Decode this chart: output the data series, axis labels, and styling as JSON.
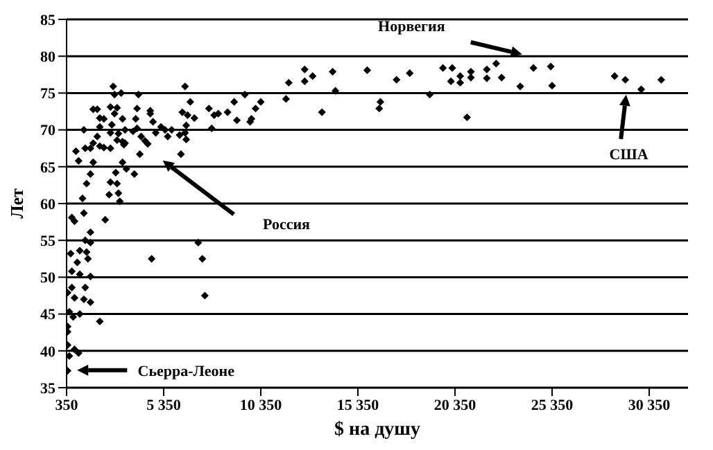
{
  "chart_data": {
    "type": "scatter",
    "xlabel": "$ на душу",
    "ylabel": "Лет",
    "marker": "diamond",
    "grid": "y",
    "legend": false,
    "xlim": [
      350,
      32350
    ],
    "ylim": [
      35,
      85
    ],
    "xticks": [
      350,
      {
        "value": 5350,
        "label": "5 350"
      },
      {
        "value": 10350,
        "label": "10 350"
      },
      {
        "value": 15350,
        "label": "15 350"
      },
      {
        "value": 20350,
        "label": "20 350"
      },
      {
        "value": 25350,
        "label": "25 350"
      },
      {
        "value": 30350,
        "label": "30 350"
      }
    ],
    "yticks": [
      35,
      40,
      45,
      50,
      55,
      60,
      65,
      70,
      75,
      80,
      85
    ],
    "annotations": [
      "Норвегия",
      "США",
      "Россия",
      "Сьерра-Леоне"
    ],
    "series": [
      {
        "color": "#000000",
        "x": [
          400,
          490,
          400,
          760,
          970,
          400,
          400,
          490,
          690,
          1030,
          400,
          760,
          620,
          1310,
          1240,
          1580,
          2060,
          620,
          1030,
          1580,
          560,
          1030,
          1380,
          900,
          1450,
          1310,
          1580,
          1580,
          4730,
          7130,
          7340,
          7470,
          620,
          760,
          2340,
          1170,
          1240,
          1380,
          1580,
          830,
          970,
          1310,
          1580,
          1240,
          1720,
          1720,
          1930,
          2060,
          2060,
          2270,
          1720,
          1930,
          2060,
          2270,
          2610,
          2820,
          2680,
          2610,
          2610,
          2820,
          3020,
          2950,
          2950,
          2610,
          2880,
          2950,
          3020,
          2540,
          3090,
          3230,
          3430,
          3840,
          3300,
          3230,
          3360,
          3360,
          3230,
          2750,
          3160,
          3770,
          3980,
          3910,
          3980,
          4050,
          4120,
          4190,
          4390,
          4530,
          4660,
          4660,
          4800,
          4940,
          5210,
          5420,
          5560,
          5760,
          6170,
          6450,
          6240,
          6310,
          6450,
          6510,
          6510,
          6580,
          6930,
          6720,
          7680,
          7820,
          7950,
          8160,
          8640,
          8980,
          9120,
          9530,
          9800,
          9870,
          10080,
          10350,
          11650,
          11790,
          12610,
          12610,
          13020,
          13500,
          14050,
          14190,
          15830,
          17340,
          18020,
          16510,
          16450,
          19050,
          19730,
          20210,
          20140,
          20620,
          20620,
          21170,
          21170,
          20970,
          21990,
          21990,
          22470,
          22750,
          23710,
          24390,
          25280,
          25350,
          28570,
          29120,
          29940,
          30970
        ],
        "values": [
          37.3,
          39.3,
          40.8,
          40.2,
          39.7,
          42.6,
          43.3,
          45.3,
          44.6,
          45,
          47.9,
          47.2,
          48.6,
          48.6,
          47,
          46.6,
          44,
          50.8,
          50.4,
          50.1,
          53.2,
          53.6,
          53.4,
          52,
          52.5,
          55,
          54.7,
          56.1,
          52.5,
          54.7,
          52.5,
          47.5,
          58.1,
          57.6,
          57.8,
          60.7,
          58.7,
          62.7,
          64,
          67.1,
          65.8,
          67.5,
          67.5,
          70,
          68.2,
          72.8,
          72.8,
          71.6,
          70.4,
          71.5,
          65.6,
          69.1,
          67.8,
          67.6,
          67.5,
          74.8,
          70.7,
          73.1,
          69.6,
          72.2,
          69.5,
          68.6,
          73,
          62.9,
          64.2,
          62.7,
          61.4,
          61.2,
          60.3,
          65.6,
          64.7,
          64,
          68,
          68.4,
          68.2,
          70,
          71.5,
          75.9,
          75,
          69.8,
          70.2,
          71.5,
          72.9,
          74.8,
          66.7,
          69.1,
          68.5,
          68.1,
          72.6,
          72.2,
          71.1,
          69.6,
          70.4,
          70,
          69.1,
          70,
          69.3,
          69.6,
          66.7,
          72.4,
          75.9,
          70.6,
          68.7,
          72,
          71.6,
          73.8,
          72.9,
          70.2,
          72,
          72.2,
          72.4,
          73.8,
          71.3,
          74.8,
          71.1,
          71.5,
          72.9,
          73.8,
          74.2,
          76.4,
          78.2,
          76.6,
          77.3,
          72.4,
          77.9,
          75.3,
          78.1,
          76.8,
          77.7,
          73.8,
          72.9,
          74.8,
          78.4,
          78.4,
          76.6,
          77.3,
          76.4,
          77.9,
          77.1,
          71.7,
          78.2,
          77,
          79,
          77.1,
          75.9,
          78.4,
          78.6,
          76,
          77.3,
          76.8,
          75.5,
          76.8
        ]
      }
    ]
  }
}
